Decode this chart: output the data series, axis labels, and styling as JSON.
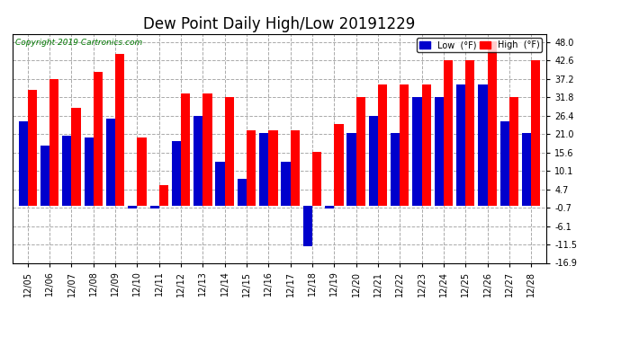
{
  "title": "Dew Point Daily High/Low 20191229",
  "copyright": "Copyright 2019 Cartronics.com",
  "dates": [
    "12/05",
    "12/06",
    "12/07",
    "12/08",
    "12/09",
    "12/10",
    "12/11",
    "12/12",
    "12/13",
    "12/14",
    "12/15",
    "12/16",
    "12/17",
    "12/18",
    "12/19",
    "12/20",
    "12/21",
    "12/22",
    "12/23",
    "12/24",
    "12/25",
    "12/26",
    "12/27",
    "12/28"
  ],
  "high": [
    34.0,
    37.2,
    28.6,
    39.2,
    44.6,
    20.0,
    6.0,
    33.0,
    33.0,
    31.8,
    22.0,
    22.0,
    22.0,
    15.8,
    24.0,
    31.8,
    35.6,
    35.6,
    35.6,
    42.8,
    42.8,
    48.2,
    31.8,
    42.8
  ],
  "low": [
    24.8,
    17.6,
    20.6,
    20.0,
    25.4,
    -1.0,
    -1.0,
    19.0,
    26.4,
    12.8,
    7.8,
    21.4,
    12.8,
    -12.0,
    -1.0,
    21.4,
    26.4,
    21.4,
    31.8,
    31.8,
    35.6,
    35.6,
    24.8,
    21.4
  ],
  "bar_color_high": "#FF0000",
  "bar_color_low": "#0000CC",
  "background_color": "#FFFFFF",
  "grid_color": "#AAAAAA",
  "ylim_min": -16.9,
  "ylim_max": 50.5,
  "yticks": [
    48.0,
    42.6,
    37.2,
    31.8,
    26.4,
    21.0,
    15.6,
    10.1,
    4.7,
    -0.7,
    -6.1,
    -11.5,
    -16.9
  ],
  "title_fontsize": 12,
  "tick_fontsize": 7,
  "copyright_color": "#007700",
  "bar_width": 0.42,
  "legend_low_label": "Low  (°F)",
  "legend_high_label": "High  (°F)"
}
